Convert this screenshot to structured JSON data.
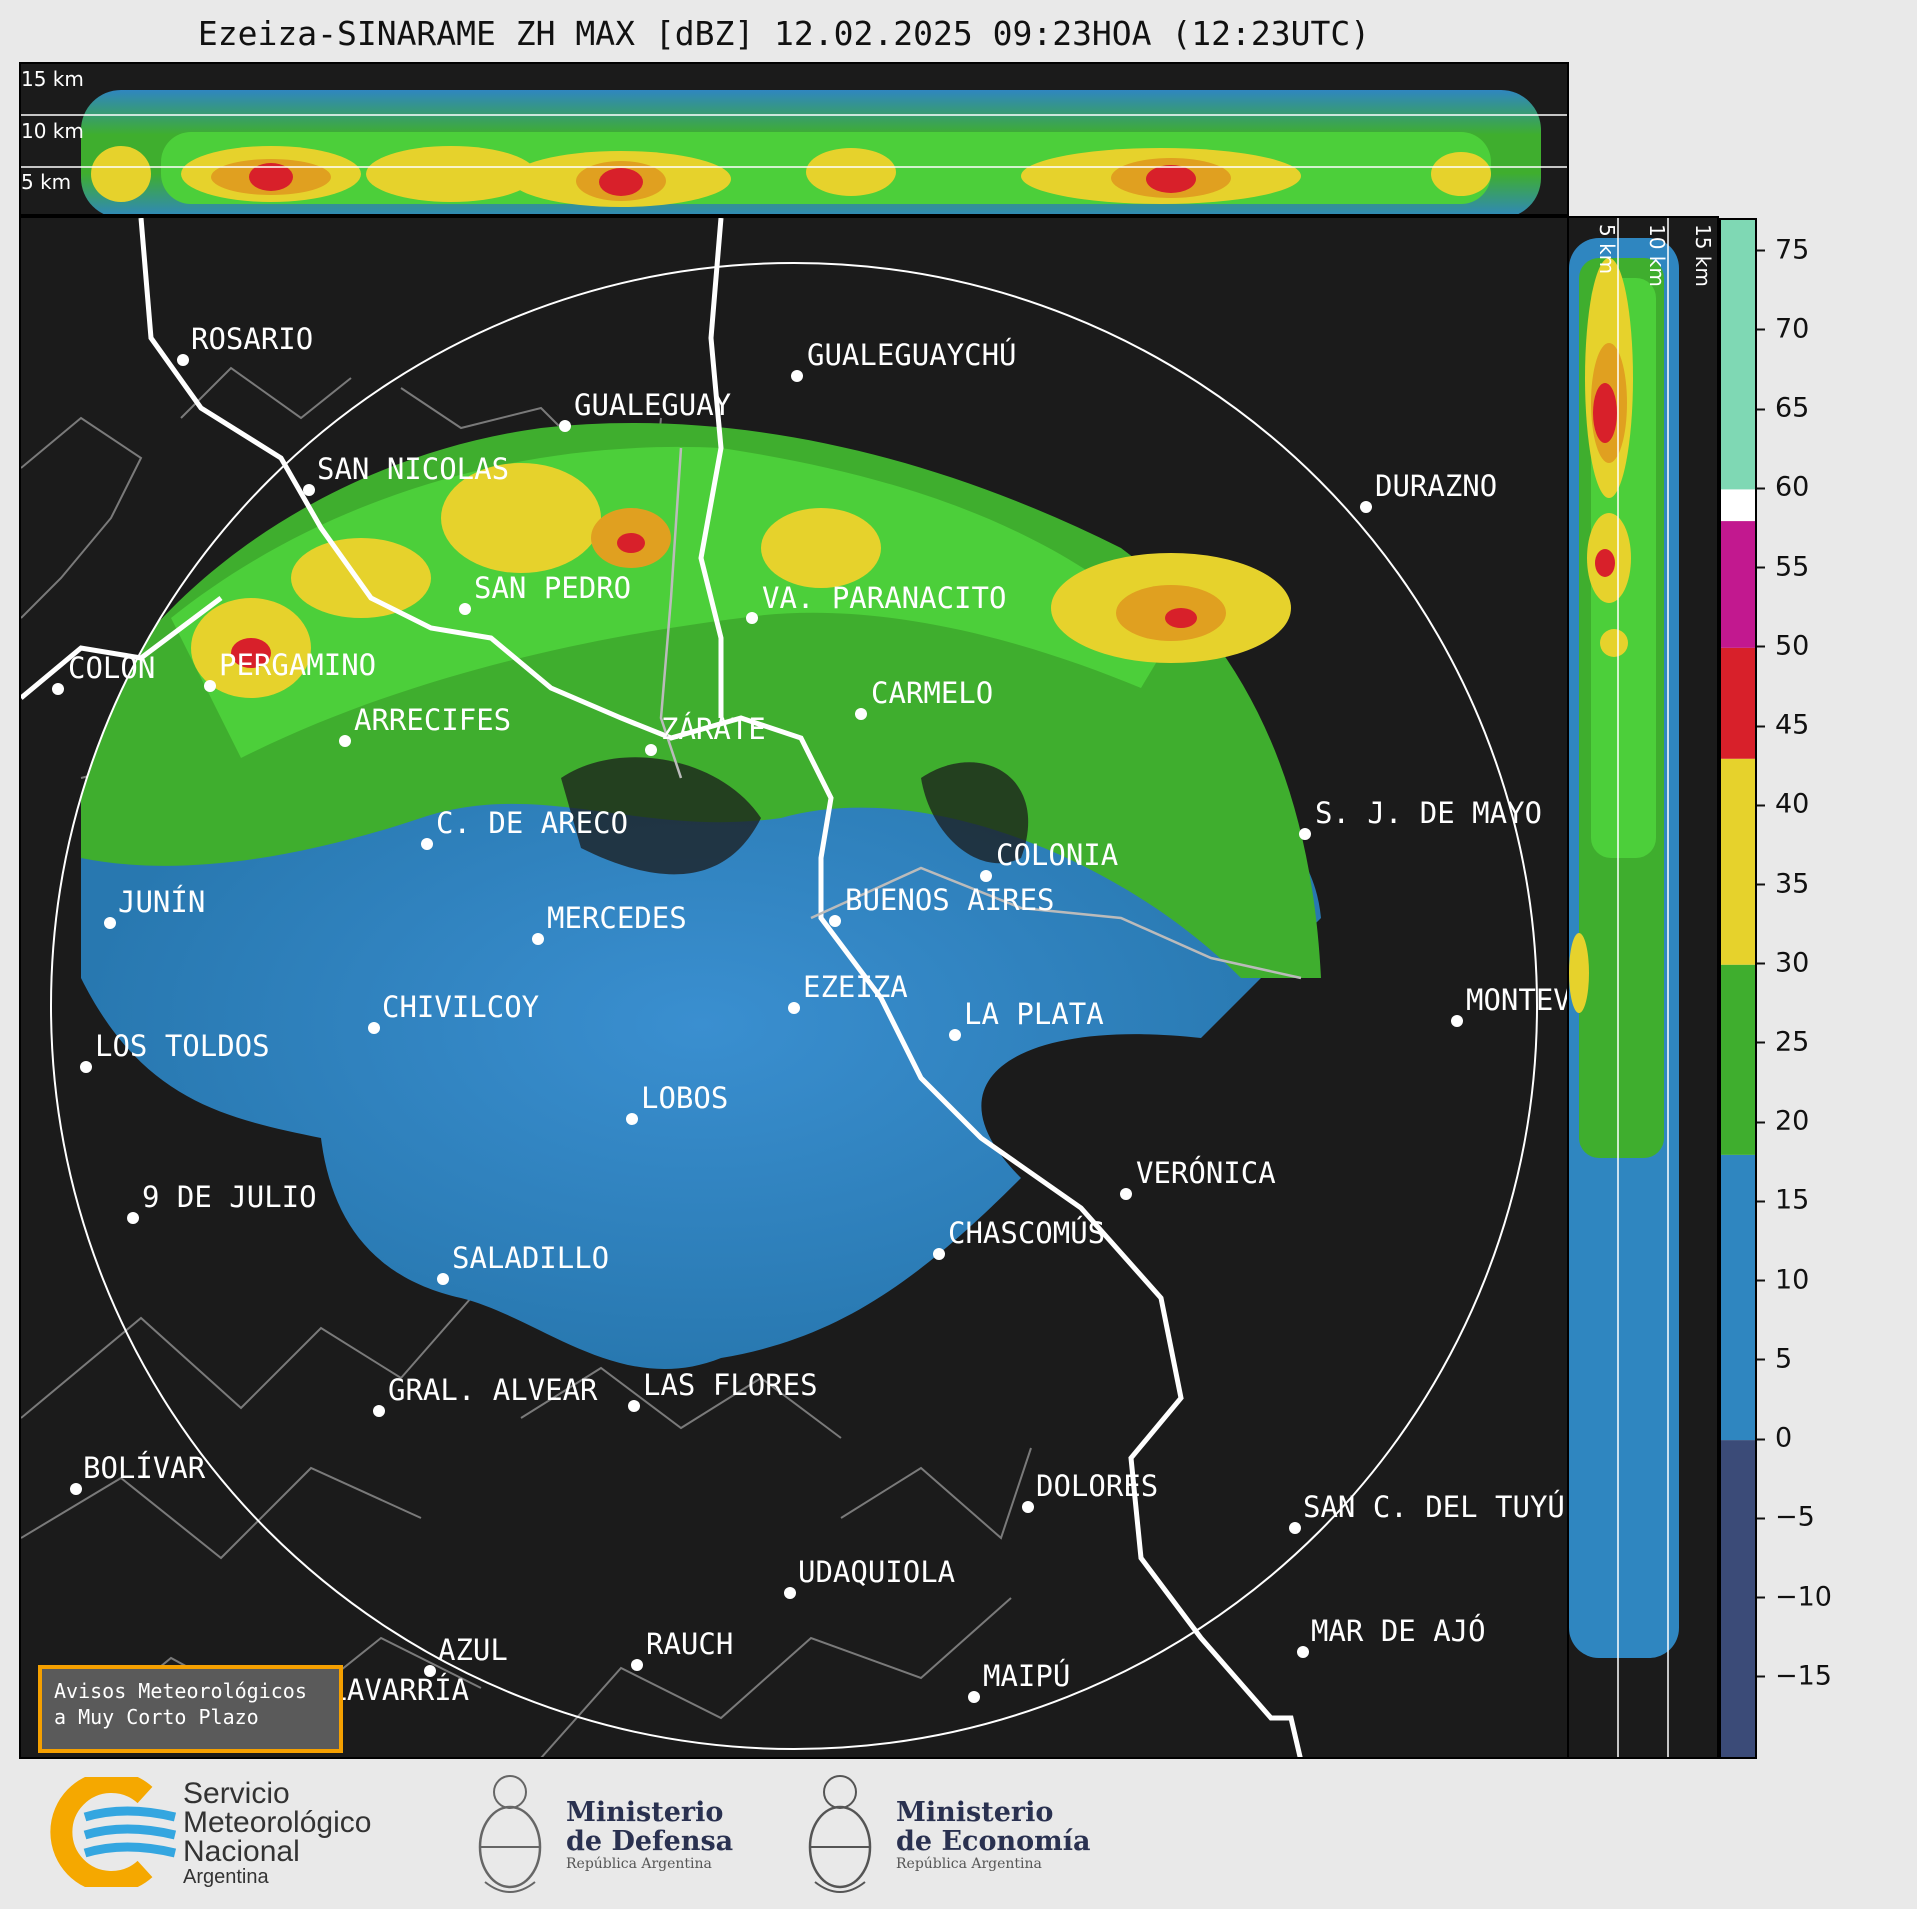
{
  "title": "Ezeiza-SINARAME ZH MAX [dBZ] 12.02.2025 09:23HOA (12:23UTC)",
  "height_labels": [
    "15 km",
    "10 km",
    "5 km"
  ],
  "colorbar": {
    "ticks": [
      "75",
      "70",
      "65",
      "60",
      "55",
      "50",
      "45",
      "40",
      "35",
      "30",
      "25",
      "20",
      "15",
      "10",
      "5",
      "0",
      "−5",
      "−10",
      "−15"
    ],
    "tick_values": [
      75,
      70,
      65,
      60,
      55,
      50,
      45,
      40,
      35,
      30,
      25,
      20,
      15,
      10,
      5,
      0,
      -5,
      -10,
      -15
    ],
    "range": [
      -20,
      77
    ],
    "colors": {
      "below_0": "#3b4b78",
      "0_to_18": "#2f86c0",
      "18_to_30": "#3fae2e",
      "30_to_43": "#e6d22c",
      "43_to_50": "#d8202a",
      "50_to_58": "#c2188f",
      "58_to_60": "#ffffff",
      "60_plus": "#7fd8b4"
    }
  },
  "cities": [
    {
      "name": "ROSARIO"
    },
    {
      "name": "GUALEGUAYCHÚ"
    },
    {
      "name": "GUALEGUAY"
    },
    {
      "name": "SAN NICOLAS"
    },
    {
      "name": "DURAZNO"
    },
    {
      "name": "SAN PEDRO"
    },
    {
      "name": "VA. PARANACITO"
    },
    {
      "name": "COLON"
    },
    {
      "name": "PERGAMINO"
    },
    {
      "name": "CARMELO"
    },
    {
      "name": "ARRECIFES"
    },
    {
      "name": "ZÁRATE"
    },
    {
      "name": "S. J. DE MAYO"
    },
    {
      "name": "C. DE ARECO"
    },
    {
      "name": "COLONIA"
    },
    {
      "name": "JUNÍN"
    },
    {
      "name": "BUENOS AIRES"
    },
    {
      "name": "MERCEDES"
    },
    {
      "name": "EZEIZA"
    },
    {
      "name": "MONTEV"
    },
    {
      "name": "CHIVILCOY"
    },
    {
      "name": "LA PLATA"
    },
    {
      "name": "LOS TOLDOS"
    },
    {
      "name": "LOBOS"
    },
    {
      "name": "VERÓNICA"
    },
    {
      "name": "9 DE JULIO"
    },
    {
      "name": "CHASCOMÚS"
    },
    {
      "name": "SALADILLO"
    },
    {
      "name": "GRAL. ALVEAR"
    },
    {
      "name": "LAS FLORES"
    },
    {
      "name": "BOLÍVAR"
    },
    {
      "name": "DOLORES"
    },
    {
      "name": "SAN C. DEL TUYÚ"
    },
    {
      "name": "UDAQUIOLA"
    },
    {
      "name": "MAR DE AJÓ"
    },
    {
      "name": "AZUL"
    },
    {
      "name": "RAUCH"
    },
    {
      "name": "OLAVARRÍA"
    },
    {
      "name": "MAIPÚ"
    }
  ],
  "notice": {
    "line1": "Avisos Meteorológicos",
    "line2": "a Muy Corto Plazo"
  },
  "logos": {
    "smn": {
      "line1": "Servicio",
      "line2": "Meteorológico",
      "line3": "Nacional",
      "line4": "Argentina"
    },
    "defensa": {
      "line1": "Ministerio",
      "line2": "de Defensa",
      "line3": "República Argentina"
    },
    "economia": {
      "line1": "Ministerio",
      "line2": "de Economía",
      "line3": "República Argentina"
    }
  }
}
